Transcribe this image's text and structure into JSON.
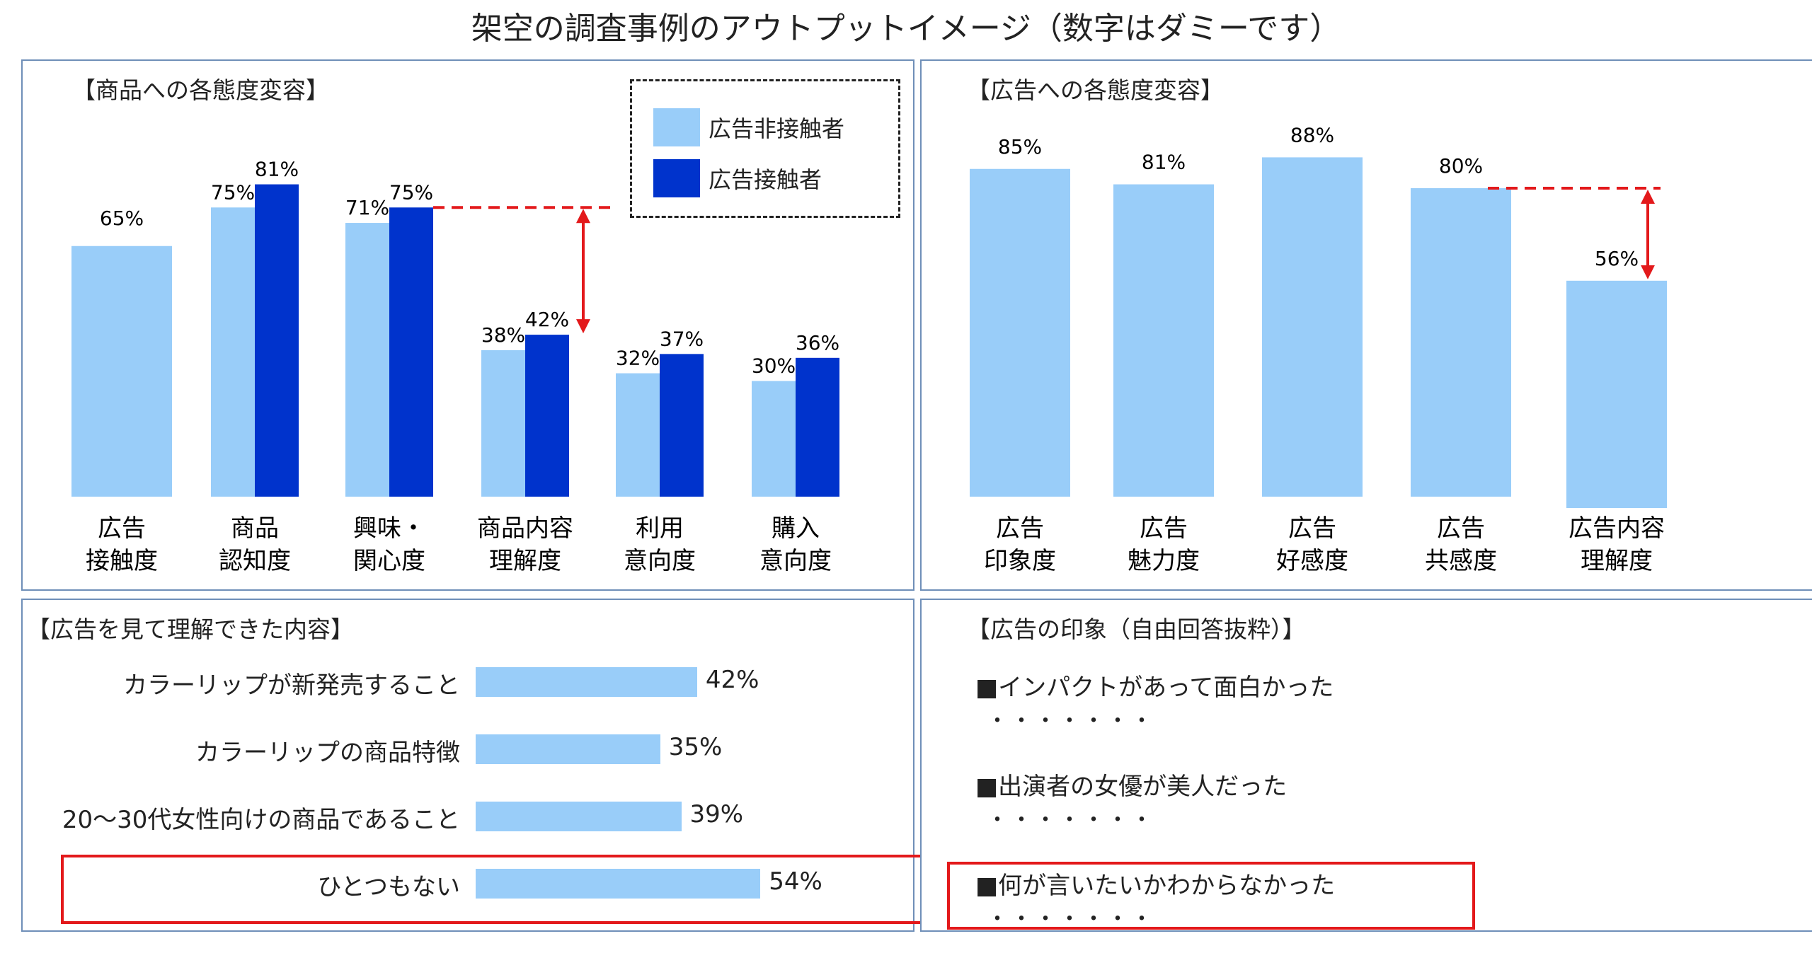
{
  "page_title": "架空の調査事例のアウトプットイメージ（数字はダミーです）",
  "colors": {
    "light": "#99cdf9",
    "dark": "#0033cc",
    "red": "#e3191b",
    "frame": "#6f8fb8"
  },
  "chart_data": [
    {
      "type": "bar",
      "title": "【商品への各態度変容】",
      "categories": [
        [
          "広告",
          "接触度"
        ],
        [
          "商品",
          "認知度"
        ],
        [
          "興味・",
          "関心度"
        ],
        [
          "商品内容",
          "理解度"
        ],
        [
          "利用",
          "意向度"
        ],
        [
          "購入",
          "意向度"
        ]
      ],
      "series": [
        {
          "name": "広告非接触者",
          "values": [
            65,
            75,
            71,
            38,
            32,
            30
          ]
        },
        {
          "name": "広告接触者",
          "values": [
            null,
            81,
            75,
            42,
            37,
            36
          ]
        }
      ],
      "value_labels": [
        [
          "65%",
          null
        ],
        [
          "75%",
          "81%"
        ],
        [
          "71%",
          "75%"
        ],
        [
          "38%",
          "42%"
        ],
        [
          "32%",
          "37%"
        ],
        [
          "30%",
          "36%"
        ]
      ],
      "ylim": [
        0,
        100
      ],
      "annotation": "gap between 興味・関心度 (広告接触者) and 商品内容理解度 (広告接触者)"
    },
    {
      "type": "bar",
      "title": "【広告への各態度変容】",
      "categories": [
        [
          "広告",
          "印象度"
        ],
        [
          "広告",
          "魅力度"
        ],
        [
          "広告",
          "好感度"
        ],
        [
          "広告",
          "共感度"
        ],
        [
          "広告内容",
          "理解度"
        ]
      ],
      "values": [
        85,
        81,
        88,
        80,
        56
      ],
      "value_labels": [
        "85%",
        "81%",
        "88%",
        "80%",
        "56%"
      ],
      "ylim": [
        0,
        100
      ],
      "annotation": "gap between 広告共感度 and 広告内容理解度"
    },
    {
      "type": "bar",
      "orientation": "horizontal",
      "title": "【広告を見て理解できた内容】",
      "categories": [
        "カラーリップが新発売すること",
        "カラーリップの商品特徴",
        "20～30代女性向けの商品であること",
        "ひとつもない"
      ],
      "values": [
        42,
        35,
        39,
        54
      ],
      "value_labels": [
        "42%",
        "35%",
        "39%",
        "54%"
      ],
      "highlight": "ひとつもない"
    }
  ],
  "legend": {
    "non_exposed": "広告非接触者",
    "exposed": "広告接触者"
  },
  "impressions": {
    "title": "【広告の印象（自由回答抜粋）】",
    "items": [
      {
        "text": "■インパクトがあって面白かった",
        "dots": "・・・・・・・"
      },
      {
        "text": "■出演者の女優が美人だった",
        "dots": "・・・・・・・"
      },
      {
        "text": "■何が言いたいかわからなかった",
        "dots": "・・・・・・・"
      }
    ]
  }
}
